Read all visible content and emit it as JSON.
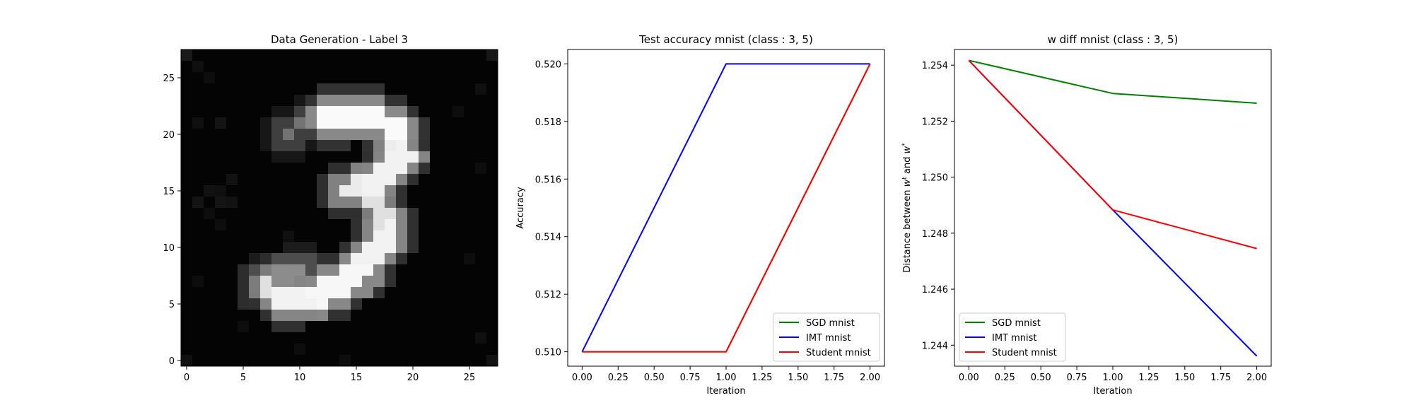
{
  "chart_data": [
    {
      "type": "heatmap",
      "title": "Data Generation - Label 3",
      "xlabel": "",
      "ylabel": "",
      "xticks": [
        "0",
        "5",
        "10",
        "15",
        "20",
        "25"
      ],
      "yticks": [
        "0",
        "5",
        "10",
        "15",
        "20",
        "25"
      ],
      "xlim": [
        -0.5,
        27.5
      ],
      "ylim": [
        27.5,
        -0.5
      ],
      "colormap": "gray",
      "rows": 28,
      "cols": 28,
      "noise_cells": [
        [
          0,
          0,
          0.1
        ],
        [
          0,
          27,
          0.09
        ],
        [
          1,
          1,
          0.06
        ],
        [
          2,
          2,
          0.05
        ],
        [
          3,
          26,
          0.06
        ],
        [
          6,
          3,
          0.08
        ],
        [
          6,
          1,
          0.06
        ],
        [
          7,
          8,
          0.07
        ],
        [
          7,
          9,
          0.06
        ],
        [
          8,
          10,
          0.06
        ],
        [
          11,
          4,
          0.07
        ],
        [
          12,
          2,
          0.07
        ],
        [
          12,
          3,
          0.06
        ],
        [
          13,
          1,
          0.08
        ],
        [
          13,
          3,
          0.08
        ],
        [
          13,
          4,
          0.07
        ],
        [
          14,
          2,
          0.05
        ],
        [
          15,
          3,
          0.05
        ],
        [
          16,
          9,
          0.06
        ],
        [
          24,
          5,
          0.05
        ],
        [
          26,
          10,
          0.05
        ],
        [
          27,
          0,
          0.06
        ],
        [
          27,
          27,
          0.07
        ],
        [
          20,
          1,
          0.05
        ],
        [
          22,
          15,
          0.06
        ],
        [
          18,
          25,
          0.05
        ],
        [
          5,
          24,
          0.05
        ],
        [
          10,
          26,
          0.05
        ],
        [
          27,
          14,
          0.05
        ],
        [
          25,
          26,
          0.06
        ]
      ],
      "strokes": [
        {
          "r0": 5.5,
          "c0": 12.5,
          "r1": 5.0,
          "c1": 15.5,
          "w": 1.0,
          "v": 0.98
        },
        {
          "r0": 5.0,
          "c0": 15.5,
          "r1": 6.5,
          "c1": 18.5,
          "w": 1.0,
          "v": 0.98
        },
        {
          "r0": 6.5,
          "c0": 18.5,
          "r1": 9.0,
          "c1": 19.0,
          "w": 1.0,
          "v": 0.93
        },
        {
          "r0": 9.0,
          "c0": 19.0,
          "r1": 11.5,
          "c1": 16.5,
          "w": 1.0,
          "v": 0.95
        },
        {
          "r0": 11.5,
          "c0": 16.5,
          "r1": 12.0,
          "c1": 14.0,
          "w": 0.8,
          "v": 0.92
        },
        {
          "r0": 12.0,
          "c0": 16.0,
          "r1": 15.5,
          "c1": 18.0,
          "w": 0.8,
          "v": 0.88
        },
        {
          "r0": 15.5,
          "c0": 18.0,
          "r1": 19.0,
          "c1": 15.5,
          "w": 1.0,
          "v": 0.95
        },
        {
          "r0": 19.0,
          "c0": 15.5,
          "r1": 21.0,
          "c1": 12.0,
          "w": 1.0,
          "v": 0.97
        },
        {
          "r0": 21.0,
          "c0": 12.0,
          "r1": 21.5,
          "c1": 8.5,
          "w": 1.0,
          "v": 0.95
        },
        {
          "r0": 21.5,
          "c0": 8.5,
          "r1": 20.5,
          "c1": 7.0,
          "w": 0.8,
          "v": 0.88
        },
        {
          "r0": 20.0,
          "c0": 7.0,
          "r1": 19.0,
          "c1": 10.0,
          "w": 0.7,
          "v": 0.55
        },
        {
          "r0": 6.0,
          "c0": 10.5,
          "r1": 7.0,
          "c1": 9.0,
          "w": 0.5,
          "v": 0.45
        }
      ]
    },
    {
      "type": "line",
      "title": "Test accuracy mnist (class : 3, 5)",
      "xlabel": "Iteration",
      "ylabel": "Accuracy",
      "x": [
        0,
        1,
        2
      ],
      "xlim": [
        -0.1,
        2.1
      ],
      "ylim": [
        0.5095,
        0.5205
      ],
      "xticks": [
        0.0,
        0.25,
        0.5,
        0.75,
        1.0,
        1.25,
        1.5,
        1.75,
        2.0
      ],
      "xtick_labels": [
        "0.00",
        "0.25",
        "0.50",
        "0.75",
        "1.00",
        "1.25",
        "1.50",
        "1.75",
        "2.00"
      ],
      "yticks": [
        0.51,
        0.512,
        0.514,
        0.516,
        0.518,
        0.52
      ],
      "ytick_labels": [
        "0.510",
        "0.512",
        "0.514",
        "0.516",
        "0.518",
        "0.520"
      ],
      "legend_position": "bottom-right",
      "series": [
        {
          "name": "SGD mnist",
          "color": "#008000",
          "values": [
            0.51,
            0.51,
            0.52
          ]
        },
        {
          "name": "IMT mnist",
          "color": "#0000ff",
          "values": [
            0.51,
            0.52,
            0.52
          ]
        },
        {
          "name": "Student mnist",
          "color": "#ff0000",
          "values": [
            0.51,
            0.51,
            0.52
          ]
        }
      ]
    },
    {
      "type": "line",
      "title": "w diff mnist (class : 3, 5)",
      "xlabel": "Iteration",
      "ylabel": "Distance between w^t and w^*",
      "ylabel_parts": {
        "prefix": "Distance between ",
        "w1": "w",
        "sup1": "t",
        "mid": " and ",
        "w2": "w",
        "sup2": "*"
      },
      "x": [
        0,
        1,
        2
      ],
      "xlim": [
        -0.1,
        2.1
      ],
      "ylim": [
        1.24325,
        1.25456
      ],
      "xticks": [
        0.0,
        0.25,
        0.5,
        0.75,
        1.0,
        1.25,
        1.5,
        1.75,
        2.0
      ],
      "xtick_labels": [
        "0.00",
        "0.25",
        "0.50",
        "0.75",
        "1.00",
        "1.25",
        "1.50",
        "1.75",
        "2.00"
      ],
      "yticks": [
        1.244,
        1.246,
        1.248,
        1.25,
        1.252,
        1.254
      ],
      "ytick_labels": [
        "1.244",
        "1.246",
        "1.248",
        "1.250",
        "1.252",
        "1.254"
      ],
      "legend_position": "bottom-left",
      "series": [
        {
          "name": "SGD mnist",
          "color": "#008000",
          "values": [
            1.25417,
            1.25299,
            1.25264
          ]
        },
        {
          "name": "IMT mnist",
          "color": "#0000ff",
          "values": [
            1.25417,
            1.24883,
            1.24361
          ]
        },
        {
          "name": "Student mnist",
          "color": "#ff0000",
          "values": [
            1.25417,
            1.24883,
            1.24745
          ]
        }
      ]
    }
  ]
}
